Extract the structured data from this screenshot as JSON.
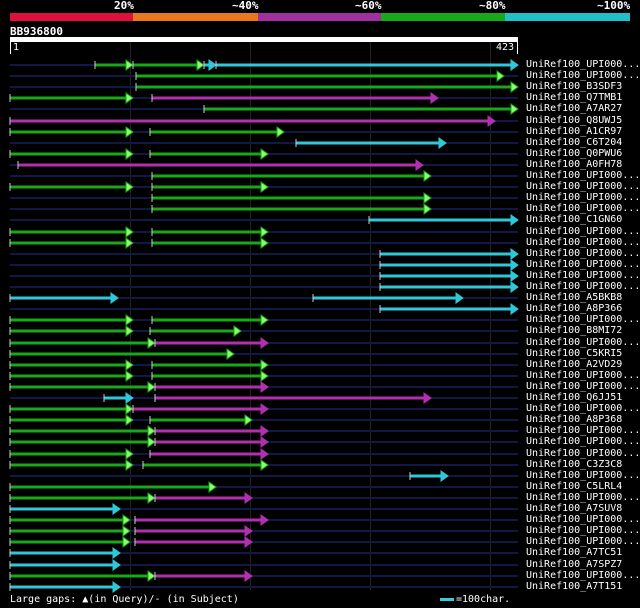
{
  "legend": {
    "labels": [
      "20%",
      "~40%",
      "~60%",
      "~80%",
      "~100%"
    ],
    "colors": [
      "#e0103c",
      "#e87820",
      "#a030a0",
      "#18a818",
      "#20c0c8"
    ]
  },
  "query": {
    "id": "BB936800",
    "length_label": "423",
    "start_label": "1"
  },
  "query_length": 423,
  "colors": {
    "cyan": "#30c8d8",
    "green": "#18a818",
    "magenta": "#b030b0",
    "magenta2": "#c040c0",
    "base": "#101848",
    "arrow_fill": "#8cff70"
  },
  "hits": [
    {
      "label": "UniRef100_UPI000...",
      "segs": [
        [
          95,
          133,
          "green"
        ],
        [
          133,
          204,
          "green"
        ],
        [
          204,
          216,
          "cyan"
        ],
        [
          216,
          518,
          "cyan"
        ]
      ]
    },
    {
      "label": "UniRef100_UPI000...",
      "segs": [
        [
          136,
          504,
          "green"
        ]
      ]
    },
    {
      "label": "UniRef100_B3SDF3",
      "segs": [
        [
          136,
          518,
          "green"
        ]
      ]
    },
    {
      "label": "UniRef100_Q7TMB1",
      "segs": [
        [
          10,
          133,
          "green"
        ],
        [
          152,
          438,
          "magenta"
        ]
      ]
    },
    {
      "label": "UniRef100_A7AR27",
      "segs": [
        [
          204,
          518,
          "green"
        ]
      ]
    },
    {
      "label": "UniRef100_Q8UWJ5",
      "segs": [
        [
          10,
          495,
          "magenta"
        ]
      ]
    },
    {
      "label": "UniRef100_A1CR97",
      "segs": [
        [
          10,
          133,
          "green"
        ],
        [
          150,
          284,
          "green"
        ]
      ]
    },
    {
      "label": "UniRef100_C6T204",
      "segs": [
        [
          296,
          446,
          "cyan"
        ]
      ]
    },
    {
      "label": "UniRef100_Q0PWU6",
      "segs": [
        [
          10,
          133,
          "green"
        ],
        [
          150,
          268,
          "green"
        ]
      ]
    },
    {
      "label": "UniRef100_A0FH78",
      "segs": [
        [
          18,
          423,
          "magenta"
        ]
      ]
    },
    {
      "label": "UniRef100_UPI000...",
      "segs": [
        [
          152,
          431,
          "green"
        ]
      ]
    },
    {
      "label": "UniRef100_UPI000...",
      "segs": [
        [
          10,
          133,
          "green"
        ],
        [
          152,
          268,
          "green"
        ]
      ]
    },
    {
      "label": "UniRef100_UPI000...",
      "segs": [
        [
          152,
          431,
          "green"
        ]
      ]
    },
    {
      "label": "UniRef100_UPI000...",
      "segs": [
        [
          152,
          431,
          "green"
        ]
      ]
    },
    {
      "label": "UniRef100_C1GN60",
      "segs": [
        [
          369,
          518,
          "cyan"
        ]
      ]
    },
    {
      "label": "UniRef100_UPI000...",
      "segs": [
        [
          10,
          133,
          "green"
        ],
        [
          152,
          268,
          "green"
        ]
      ]
    },
    {
      "label": "UniRef100_UPI000...",
      "segs": [
        [
          10,
          133,
          "green"
        ],
        [
          152,
          268,
          "green"
        ]
      ]
    },
    {
      "label": "UniRef100_UPI000...",
      "segs": [
        [
          380,
          518,
          "cyan"
        ]
      ]
    },
    {
      "label": "UniRef100_UPI000...",
      "segs": [
        [
          380,
          518,
          "cyan"
        ]
      ]
    },
    {
      "label": "UniRef100_UPI000...",
      "segs": [
        [
          380,
          518,
          "cyan"
        ]
      ]
    },
    {
      "label": "UniRef100_UPI000...",
      "segs": [
        [
          380,
          518,
          "cyan"
        ]
      ]
    },
    {
      "label": "UniRef100_A5BKB8",
      "segs": [
        [
          10,
          118,
          "cyan"
        ],
        [
          313,
          463,
          "cyan"
        ]
      ]
    },
    {
      "label": "UniRef100_A8P366",
      "segs": [
        [
          380,
          518,
          "cyan"
        ]
      ]
    },
    {
      "label": "UniRef100_UPI000...",
      "segs": [
        [
          10,
          133,
          "green"
        ],
        [
          152,
          268,
          "green"
        ]
      ]
    },
    {
      "label": "UniRef100_B8MI72",
      "segs": [
        [
          10,
          133,
          "green"
        ],
        [
          150,
          241,
          "green"
        ]
      ]
    },
    {
      "label": "UniRef100_UPI000...",
      "segs": [
        [
          10,
          155,
          "green"
        ],
        [
          155,
          268,
          "magenta"
        ]
      ]
    },
    {
      "label": "UniRef100_C5KRI5",
      "segs": [
        [
          10,
          234,
          "green"
        ]
      ]
    },
    {
      "label": "UniRef100_A2VD29",
      "segs": [
        [
          10,
          133,
          "green"
        ],
        [
          152,
          268,
          "green"
        ]
      ]
    },
    {
      "label": "UniRef100_UPI000...",
      "segs": [
        [
          10,
          133,
          "green"
        ],
        [
          152,
          268,
          "green"
        ]
      ]
    },
    {
      "label": "UniRef100_UPI000...",
      "segs": [
        [
          10,
          155,
          "green"
        ],
        [
          155,
          268,
          "magenta"
        ]
      ]
    },
    {
      "label": "UniRef100_Q6JJ51",
      "segs": [
        [
          104,
          133,
          "cyan"
        ],
        [
          155,
          431,
          "magenta"
        ]
      ]
    },
    {
      "label": "UniRef100_UPI000...",
      "segs": [
        [
          10,
          133,
          "green"
        ],
        [
          133,
          268,
          "magenta"
        ]
      ]
    },
    {
      "label": "UniRef100_A8P368",
      "segs": [
        [
          10,
          133,
          "green"
        ],
        [
          150,
          252,
          "green"
        ]
      ]
    },
    {
      "label": "UniRef100_UPI000...",
      "segs": [
        [
          10,
          155,
          "green"
        ],
        [
          155,
          268,
          "magenta"
        ]
      ]
    },
    {
      "label": "UniRef100_UPI000...",
      "segs": [
        [
          10,
          155,
          "green"
        ],
        [
          155,
          268,
          "magenta"
        ]
      ]
    },
    {
      "label": "UniRef100_UPI000...",
      "segs": [
        [
          10,
          133,
          "green"
        ],
        [
          150,
          268,
          "magenta"
        ]
      ]
    },
    {
      "label": "UniRef100_C3Z3C8",
      "segs": [
        [
          10,
          133,
          "green"
        ],
        [
          143,
          268,
          "green"
        ]
      ]
    },
    {
      "label": "UniRef100_UPI000...",
      "segs": [
        [
          410,
          448,
          "cyan"
        ]
      ]
    },
    {
      "label": "UniRef100_C5LRL4",
      "segs": [
        [
          10,
          216,
          "green"
        ]
      ]
    },
    {
      "label": "UniRef100_UPI000...",
      "segs": [
        [
          10,
          155,
          "green"
        ],
        [
          155,
          252,
          "magenta"
        ]
      ]
    },
    {
      "label": "UniRef100_A7SUV8",
      "segs": [
        [
          10,
          120,
          "cyan"
        ]
      ]
    },
    {
      "label": "UniRef100_UPI000...",
      "segs": [
        [
          10,
          130,
          "green"
        ],
        [
          135,
          268,
          "magenta"
        ]
      ]
    },
    {
      "label": "UniRef100_UPI000...",
      "segs": [
        [
          10,
          130,
          "green"
        ],
        [
          135,
          252,
          "magenta"
        ]
      ]
    },
    {
      "label": "UniRef100_UPI000...",
      "segs": [
        [
          10,
          130,
          "green"
        ],
        [
          135,
          252,
          "magenta"
        ]
      ]
    },
    {
      "label": "UniRef100_A7TC51",
      "segs": [
        [
          10,
          120,
          "cyan"
        ]
      ]
    },
    {
      "label": "UniRef100_A7SPZ7",
      "segs": [
        [
          10,
          120,
          "cyan"
        ]
      ]
    },
    {
      "label": "UniRef100_UPI000...",
      "segs": [
        [
          10,
          155,
          "green"
        ],
        [
          155,
          252,
          "magenta"
        ]
      ]
    },
    {
      "label": "UniRef100_A7T151",
      "segs": [
        [
          10,
          120,
          "cyan"
        ]
      ]
    }
  ],
  "footer": {
    "large_gaps": "Large gaps:",
    "query_gap": "(in Query)/",
    "subject_gap": "(in Subject)",
    "scale": "=100char."
  }
}
